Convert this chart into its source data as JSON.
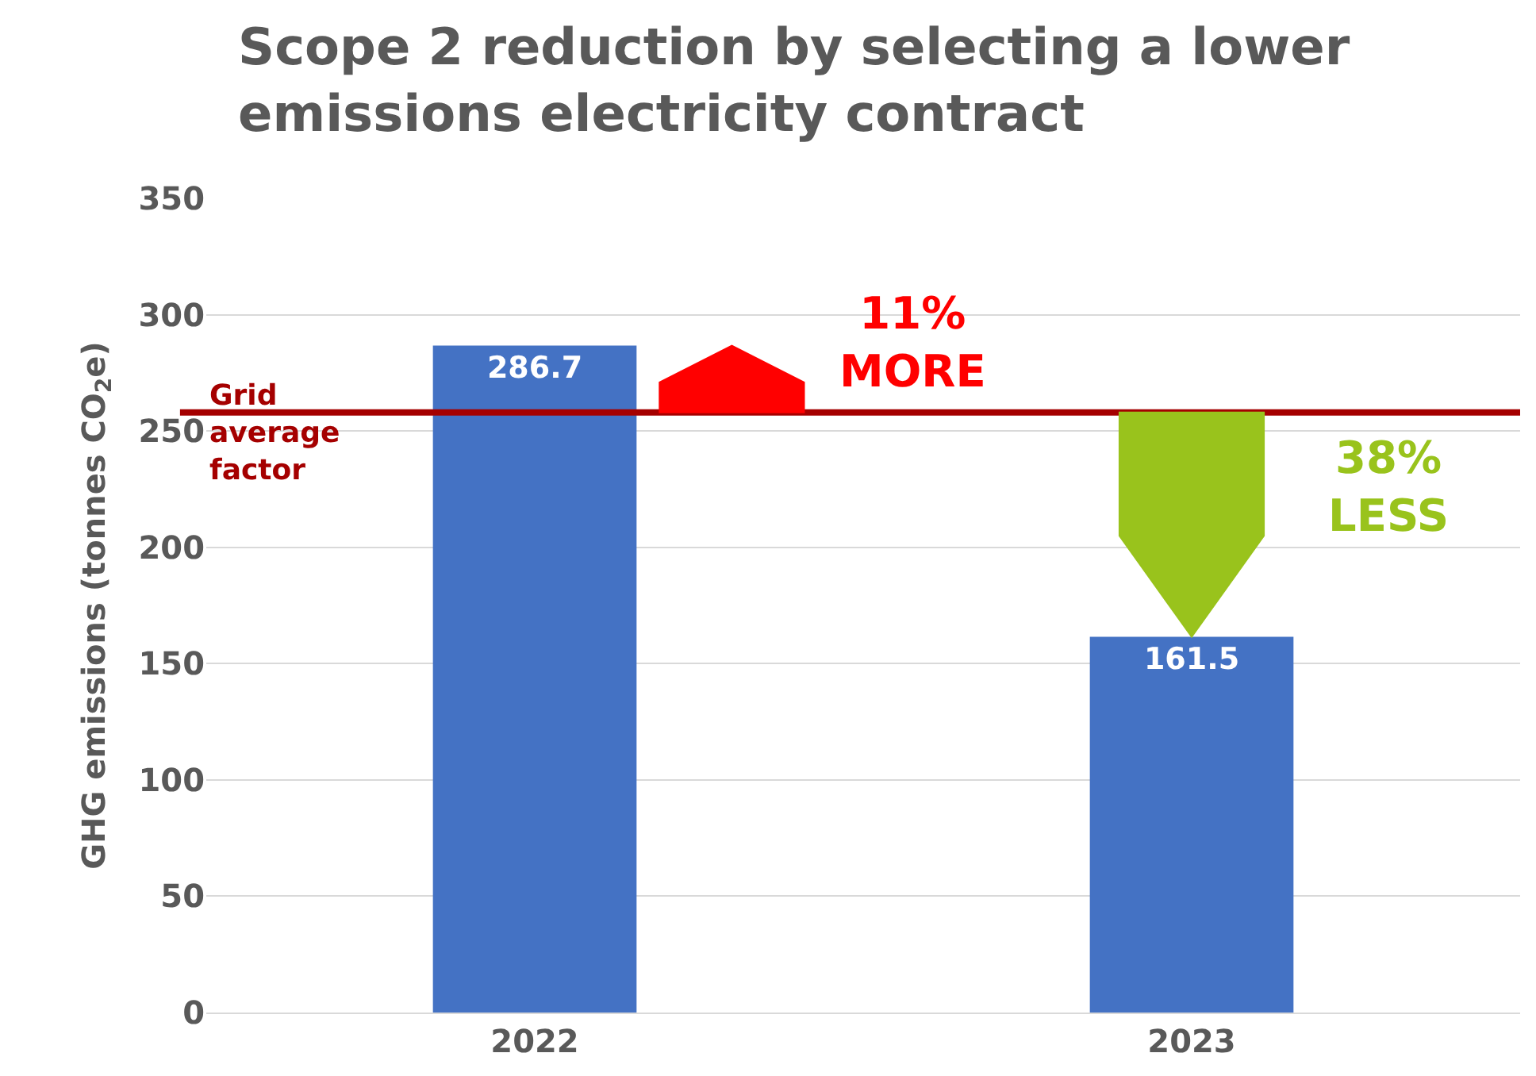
{
  "chart_data": {
    "type": "bar",
    "title": "Scope 2 reduction by selecting a lower\nemissions electricity contract",
    "categories": [
      "2022",
      "2023"
    ],
    "values": [
      286.7,
      161.5
    ],
    "color": "#4472c4",
    "data_labels": true,
    "ylabel": "GHG emissions (tonnes CO$_{2}$e)",
    "ylim": [
      0,
      350
    ],
    "yticks": [
      0,
      50,
      100,
      150,
      200,
      250,
      300,
      350
    ],
    "grid": "y",
    "ref_lines": [
      {
        "axis": "y",
        "value": 258,
        "label": "Grid\naverage\nfactor",
        "color": "#a50000"
      }
    ],
    "annotations": [
      "11%\nMORE",
      "38%\nLESS"
    ]
  }
}
